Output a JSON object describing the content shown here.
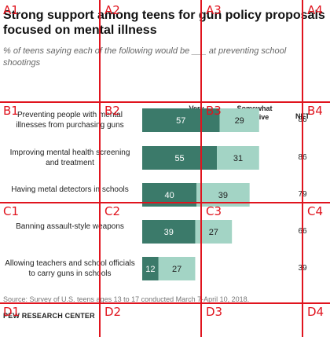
{
  "title": "Strong support among teens for gun policy proposals focused on mental illness",
  "subtitle": "% of teens saying each of the following would be ___ at preventing school shootings",
  "colors": {
    "very": "#3b7a6a",
    "somewhat": "#a3d4c5",
    "grid": "#e0141e"
  },
  "chart_data": {
    "type": "bar",
    "stacked": true,
    "orientation": "horizontal",
    "column_headers": {
      "very": "Very effective",
      "somewhat": "Somewhat effective",
      "net": "NET"
    },
    "categories": [
      "Preventing people with mental illnesses from purchasing guns",
      "Improving mental health screening and treatment",
      "Having metal detectors in schools",
      "Banning assault-style weapons",
      "Allowing teachers and school officials to carry guns in schools"
    ],
    "series": [
      {
        "name": "Very effective",
        "values": [
          57,
          55,
          40,
          39,
          12
        ]
      },
      {
        "name": "Somewhat effective",
        "values": [
          29,
          31,
          39,
          27,
          27
        ]
      }
    ],
    "net": [
      86,
      86,
      79,
      66,
      39
    ],
    "xlim": [
      0,
      100
    ]
  },
  "source": "Source: Survey of U.S. teens ages 13 to 17 conducted March 7-April 10, 2018.",
  "brand": "PEW RESEARCH CENTER",
  "grid_labels": [
    "A1",
    "A2",
    "A3",
    "A4",
    "B1",
    "B2",
    "B3",
    "B4",
    "C1",
    "C2",
    "C3",
    "C4",
    "D1",
    "D2",
    "D3",
    "D4"
  ]
}
